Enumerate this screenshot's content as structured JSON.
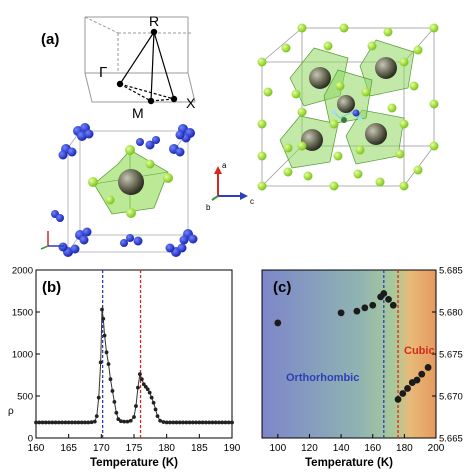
{
  "panels": {
    "a": {
      "label": "(a)",
      "points": [
        "R",
        "Γ",
        "M",
        "X"
      ],
      "axes": [
        "a",
        "b",
        "c"
      ]
    },
    "b": {
      "label": "(b)",
      "xlabel": "Temperature (K)",
      "ylabel": "ρ"
    },
    "c": {
      "label": "(c)",
      "xlabel": "Temperature (K)",
      "phase_low": "Orthorhombic",
      "phase_high": "Cubic"
    }
  },
  "colors": {
    "cubic": "#d42a1e",
    "ortho": "#2b3fb8",
    "octahedron": "#7ccf50",
    "sphere": "#6a6a56",
    "atom_blue": "#2233cc"
  },
  "chart_data": [
    {
      "type": "line",
      "panel": "b",
      "xlabel": "Temperature (K)",
      "ylabel": "ρ",
      "xlim": [
        160,
        190
      ],
      "ylim": [
        0,
        2000
      ],
      "xticks": [
        160,
        165,
        170,
        175,
        180,
        185,
        190
      ],
      "yticks": [
        0,
        500,
        1000,
        1500,
        2000
      ],
      "vlines": [
        {
          "x": 170.2,
          "color": "blue"
        },
        {
          "x": 176,
          "color": "red"
        }
      ],
      "x": [
        160,
        160.5,
        161,
        161.5,
        162,
        162.5,
        163,
        163.5,
        164,
        164.5,
        165,
        165.5,
        166,
        166.5,
        167,
        167.5,
        168,
        168.5,
        169,
        169.3,
        169.6,
        169.9,
        170.1,
        170.3,
        170.5,
        170.8,
        171.1,
        171.4,
        171.7,
        172,
        172.3,
        172.6,
        173,
        173.5,
        174,
        174.5,
        175,
        175.3,
        175.6,
        175.9,
        176.2,
        176.5,
        176.8,
        177.1,
        177.4,
        177.7,
        178,
        178.3,
        178.6,
        179,
        179.5,
        180,
        180.5,
        181,
        181.5,
        182,
        182.5,
        183,
        183.5,
        184,
        184.5,
        185,
        185.5,
        186,
        186.5,
        187,
        187.5,
        188,
        188.5,
        189,
        189.5,
        190
      ],
      "y": [
        185,
        185,
        185,
        185,
        185,
        185,
        185,
        185,
        185,
        185,
        185,
        185,
        185,
        185,
        185,
        185,
        185,
        188,
        195,
        260,
        480,
        900,
        1530,
        1420,
        1220,
        1020,
        880,
        700,
        560,
        430,
        300,
        225,
        200,
        195,
        195,
        205,
        250,
        380,
        600,
        760,
        700,
        640,
        610,
        580,
        540,
        480,
        420,
        340,
        260,
        205,
        190,
        185,
        185,
        185,
        185,
        185,
        185,
        185,
        185,
        185,
        185,
        185,
        185,
        185,
        185,
        185,
        185,
        185,
        185,
        185,
        185,
        185
      ]
    },
    {
      "type": "scatter",
      "panel": "c",
      "xlabel": "Temperature (K)",
      "xlim": [
        90,
        200
      ],
      "ylim": [
        5.665,
        5.685
      ],
      "xticks": [
        100,
        120,
        140,
        160,
        180,
        200
      ],
      "yticks": [
        5.665,
        5.67,
        5.675,
        5.68,
        5.685
      ],
      "vlines": [
        {
          "x": 167,
          "color": "blue"
        },
        {
          "x": 176,
          "color": "red"
        }
      ],
      "series": [
        {
          "x": [
            100,
            140,
            150,
            155,
            160,
            165,
            167,
            170,
            173
          ],
          "y": [
            5.6787,
            5.6799,
            5.6801,
            5.6805,
            5.6808,
            5.6818,
            5.6822,
            5.6815,
            5.6808
          ]
        },
        {
          "x": [
            176,
            179,
            182,
            185,
            188,
            191,
            195
          ],
          "y": [
            5.6696,
            5.6703,
            5.6709,
            5.6716,
            5.6719,
            5.6726,
            5.6734
          ]
        }
      ]
    }
  ]
}
